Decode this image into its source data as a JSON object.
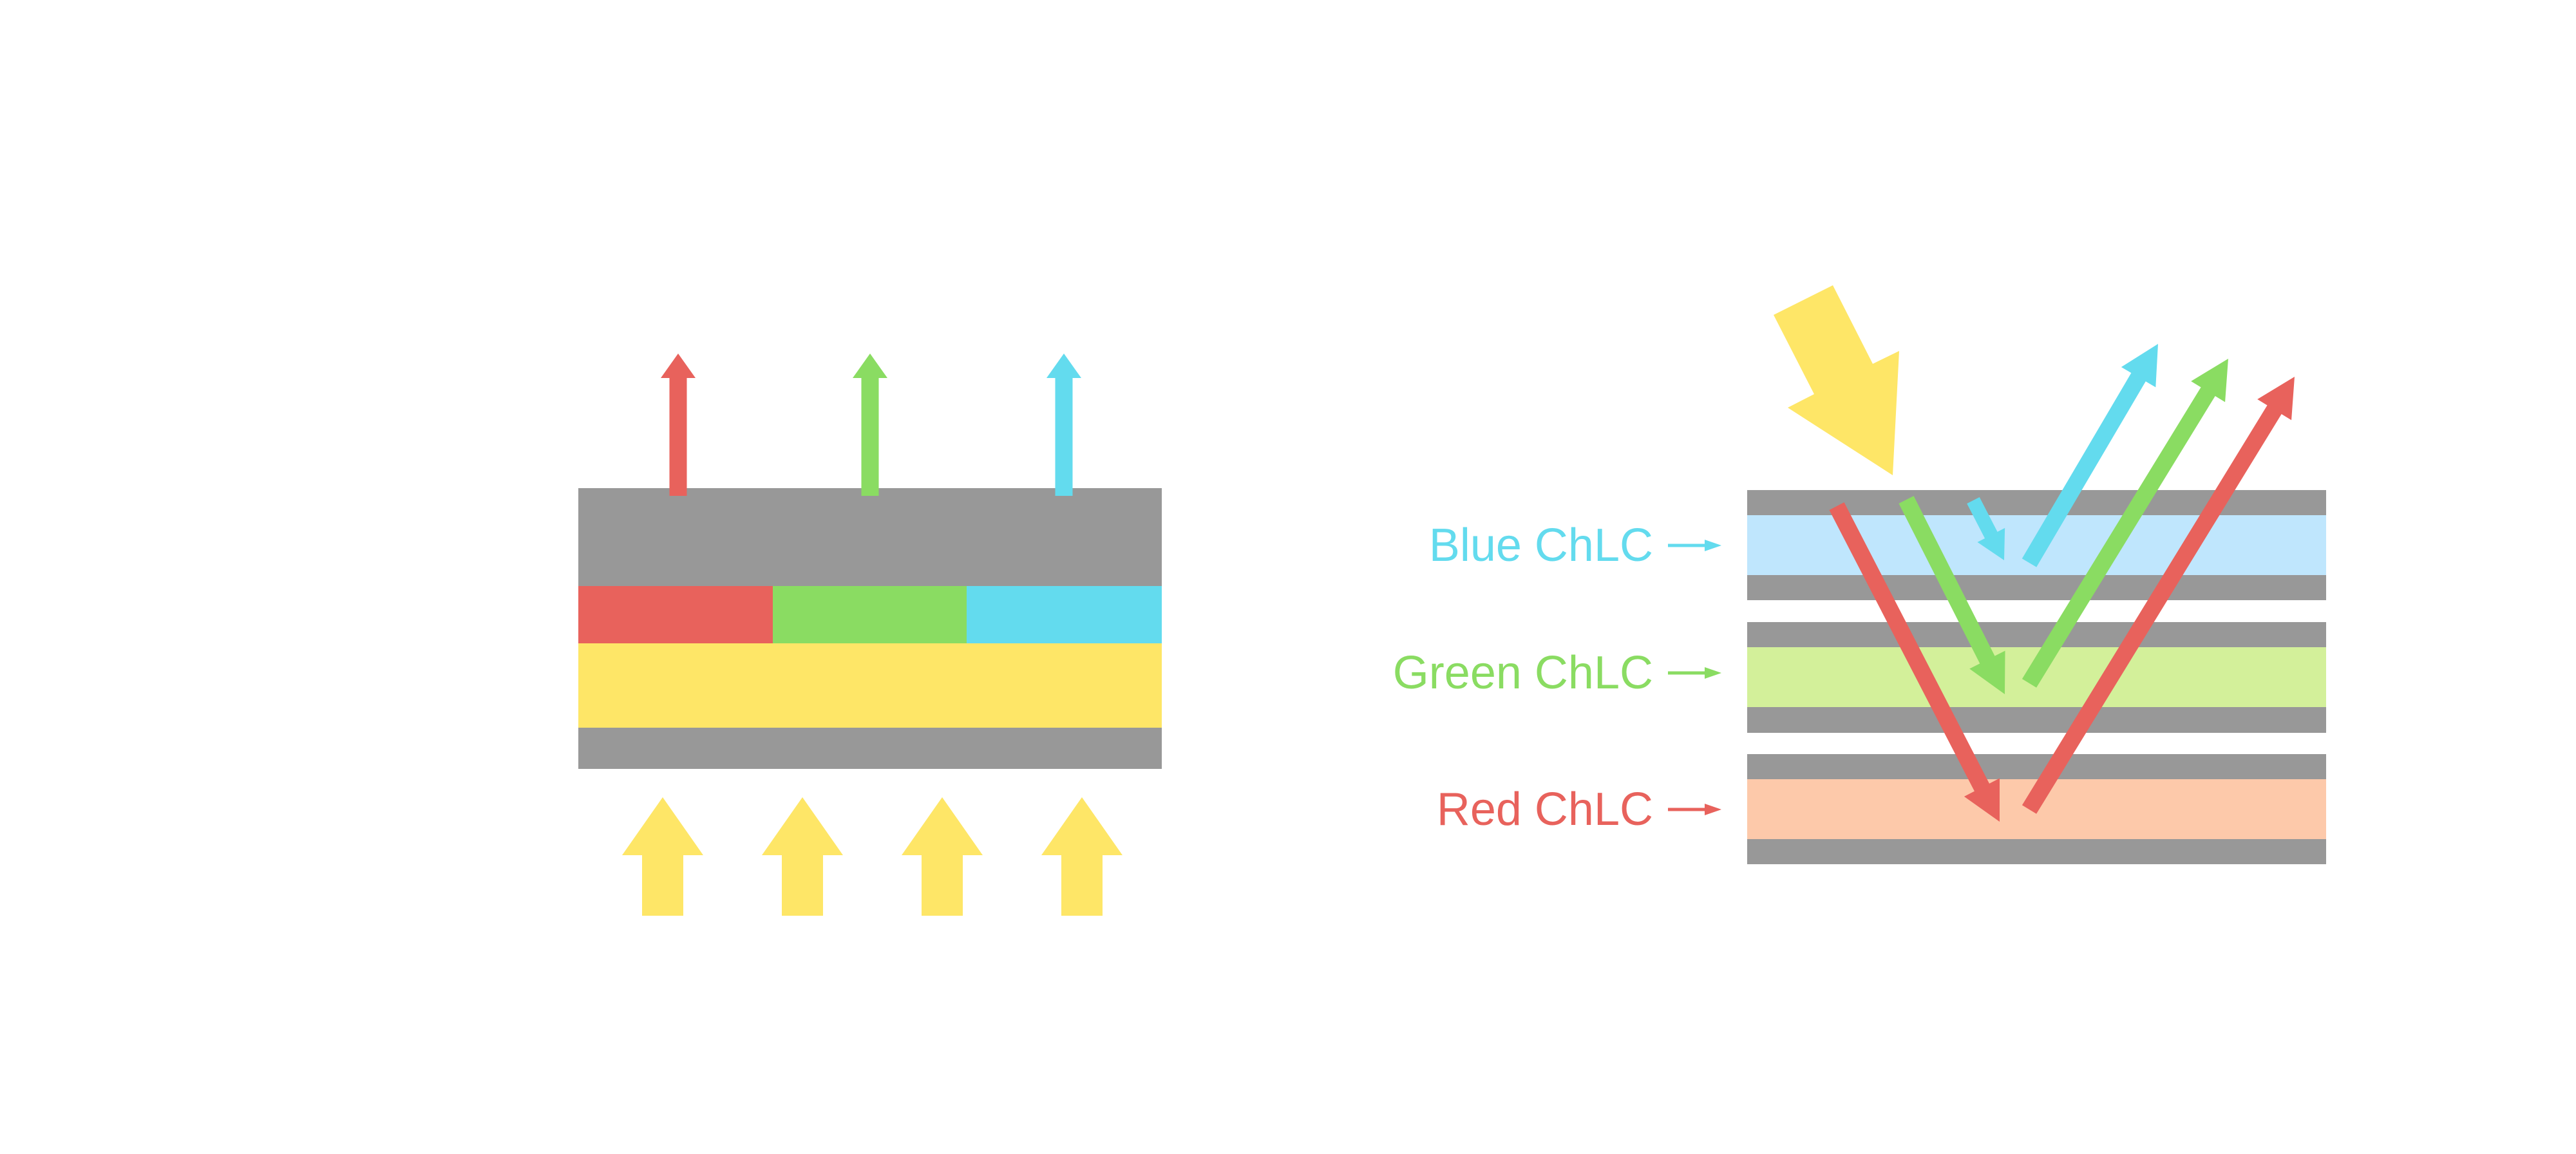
{
  "colors": {
    "gray": "#989898",
    "red": "#e8625c",
    "green": "#8adc62",
    "cyan": "#63dbee",
    "yellow": "#fee667",
    "blue_layer": "#bfe6fd",
    "green_layer": "#d3f09a",
    "red_layer": "#fdc9aa"
  },
  "right_diagram": {
    "labels": [
      {
        "text": "Blue ChLC",
        "color": "#63dbee"
      },
      {
        "text": "Green ChLC",
        "color": "#8adc62"
      },
      {
        "text": "Red ChLC",
        "color": "#e8625c"
      }
    ]
  }
}
